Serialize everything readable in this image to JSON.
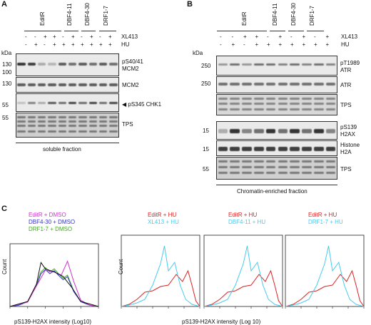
{
  "panels": {
    "A": {
      "letter": "A",
      "groups": [
        "EditR",
        "DBF4-11",
        "DBF4-30",
        "DRF1-7"
      ],
      "xl413_label": "XL413",
      "hu_label": "HU",
      "xl413_signs": [
        "-",
        "-",
        "+",
        "+",
        "-",
        "+",
        "-",
        "+",
        "-",
        "+"
      ],
      "hu_signs": [
        "-",
        "+",
        "-",
        "+",
        "+",
        "+",
        "+",
        "+",
        "+",
        "+"
      ],
      "kda": "kDa",
      "markers": [
        "130",
        "100",
        "130",
        "55",
        "55"
      ],
      "blots": [
        "pS40/41\nMCM2",
        "MCM2",
        "pS345 CHK1",
        "TPS"
      ],
      "blot_labels": {
        "b1": "pS40/41",
        "b1b": "MCM2",
        "b2": "MCM2",
        "b3": "pS345 CHK1",
        "b4": "TPS"
      },
      "fraction": "soluble fraction"
    },
    "B": {
      "letter": "B",
      "groups": [
        "EditR",
        "DBF4-11",
        "DBF4-30",
        "DRF1-7"
      ],
      "xl413_label": "XL413",
      "hu_label": "HU",
      "xl413_signs": [
        "-",
        "-",
        "+",
        "+",
        "-",
        "+",
        "-",
        "+",
        "-",
        "+"
      ],
      "hu_signs": [
        "-",
        "+",
        "-",
        "+",
        "+",
        "+",
        "+",
        "+",
        "+",
        "+"
      ],
      "kda": "kDa",
      "markers": [
        "250",
        "250",
        "15",
        "15",
        "55"
      ],
      "blot_labels": {
        "b1": "pT1989",
        "b1b": "ATR",
        "b2": "ATR",
        "b3": "TPS",
        "b4": "pS139",
        "b4b": "H2AX",
        "b5": "Histone",
        "b5b": "H2A",
        "b6": "TPS"
      },
      "fraction": "Chromatin-enriched fraction"
    },
    "C": {
      "letter": "C",
      "legend1": [
        {
          "text": "EditR + DMSO",
          "color": "#cc33cc"
        },
        {
          "text": "DBF4-30 + DMSO",
          "color": "#3333cc"
        },
        {
          "text": "DRF1-7 + DMSO",
          "color": "#44aa22"
        }
      ],
      "legend2": [
        {
          "text": "EditR + HU",
          "color": "#dd2222"
        },
        {
          "text": "XL413 + HU",
          "color": "#44ccee"
        }
      ],
      "legend3": [
        {
          "text": "EditR + HU",
          "color": "#dd2222"
        },
        {
          "text": "DBF4-11 + HU",
          "color": "#44ccee"
        }
      ],
      "legend4": [
        {
          "text": "EditR + HU",
          "color": "#dd2222"
        },
        {
          "text": "DRF1-7 + HU",
          "color": "#44ccee"
        }
      ],
      "ylabel": "Count",
      "xlabel1": "pS139-H2AX intensity (Log10)",
      "xlabel2": "pS139-H2AX intensity (Log 10)"
    }
  }
}
